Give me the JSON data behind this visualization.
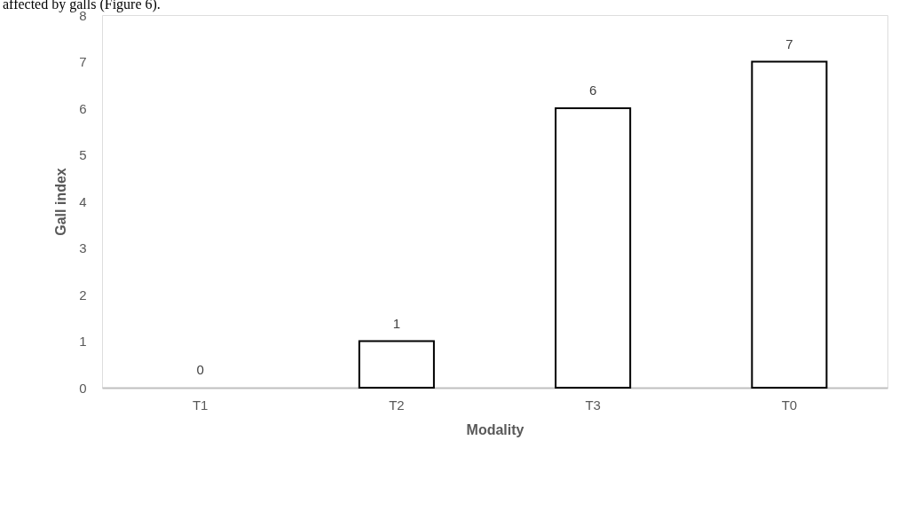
{
  "chart_data": {
    "type": "bar",
    "categories": [
      "T1",
      "T2",
      "T3",
      "T0"
    ],
    "values": [
      0,
      1,
      6,
      7
    ],
    "color": "#ffffff",
    "xlabel": "Modality",
    "ylabel": "Gall index",
    "ylim": [
      0,
      8
    ],
    "yticks": [
      0,
      1,
      2,
      3,
      4,
      5,
      6,
      7,
      8
    ],
    "grid": false,
    "data_labels": true,
    "annotations": [
      "affected by galls (Figure 6)."
    ]
  }
}
